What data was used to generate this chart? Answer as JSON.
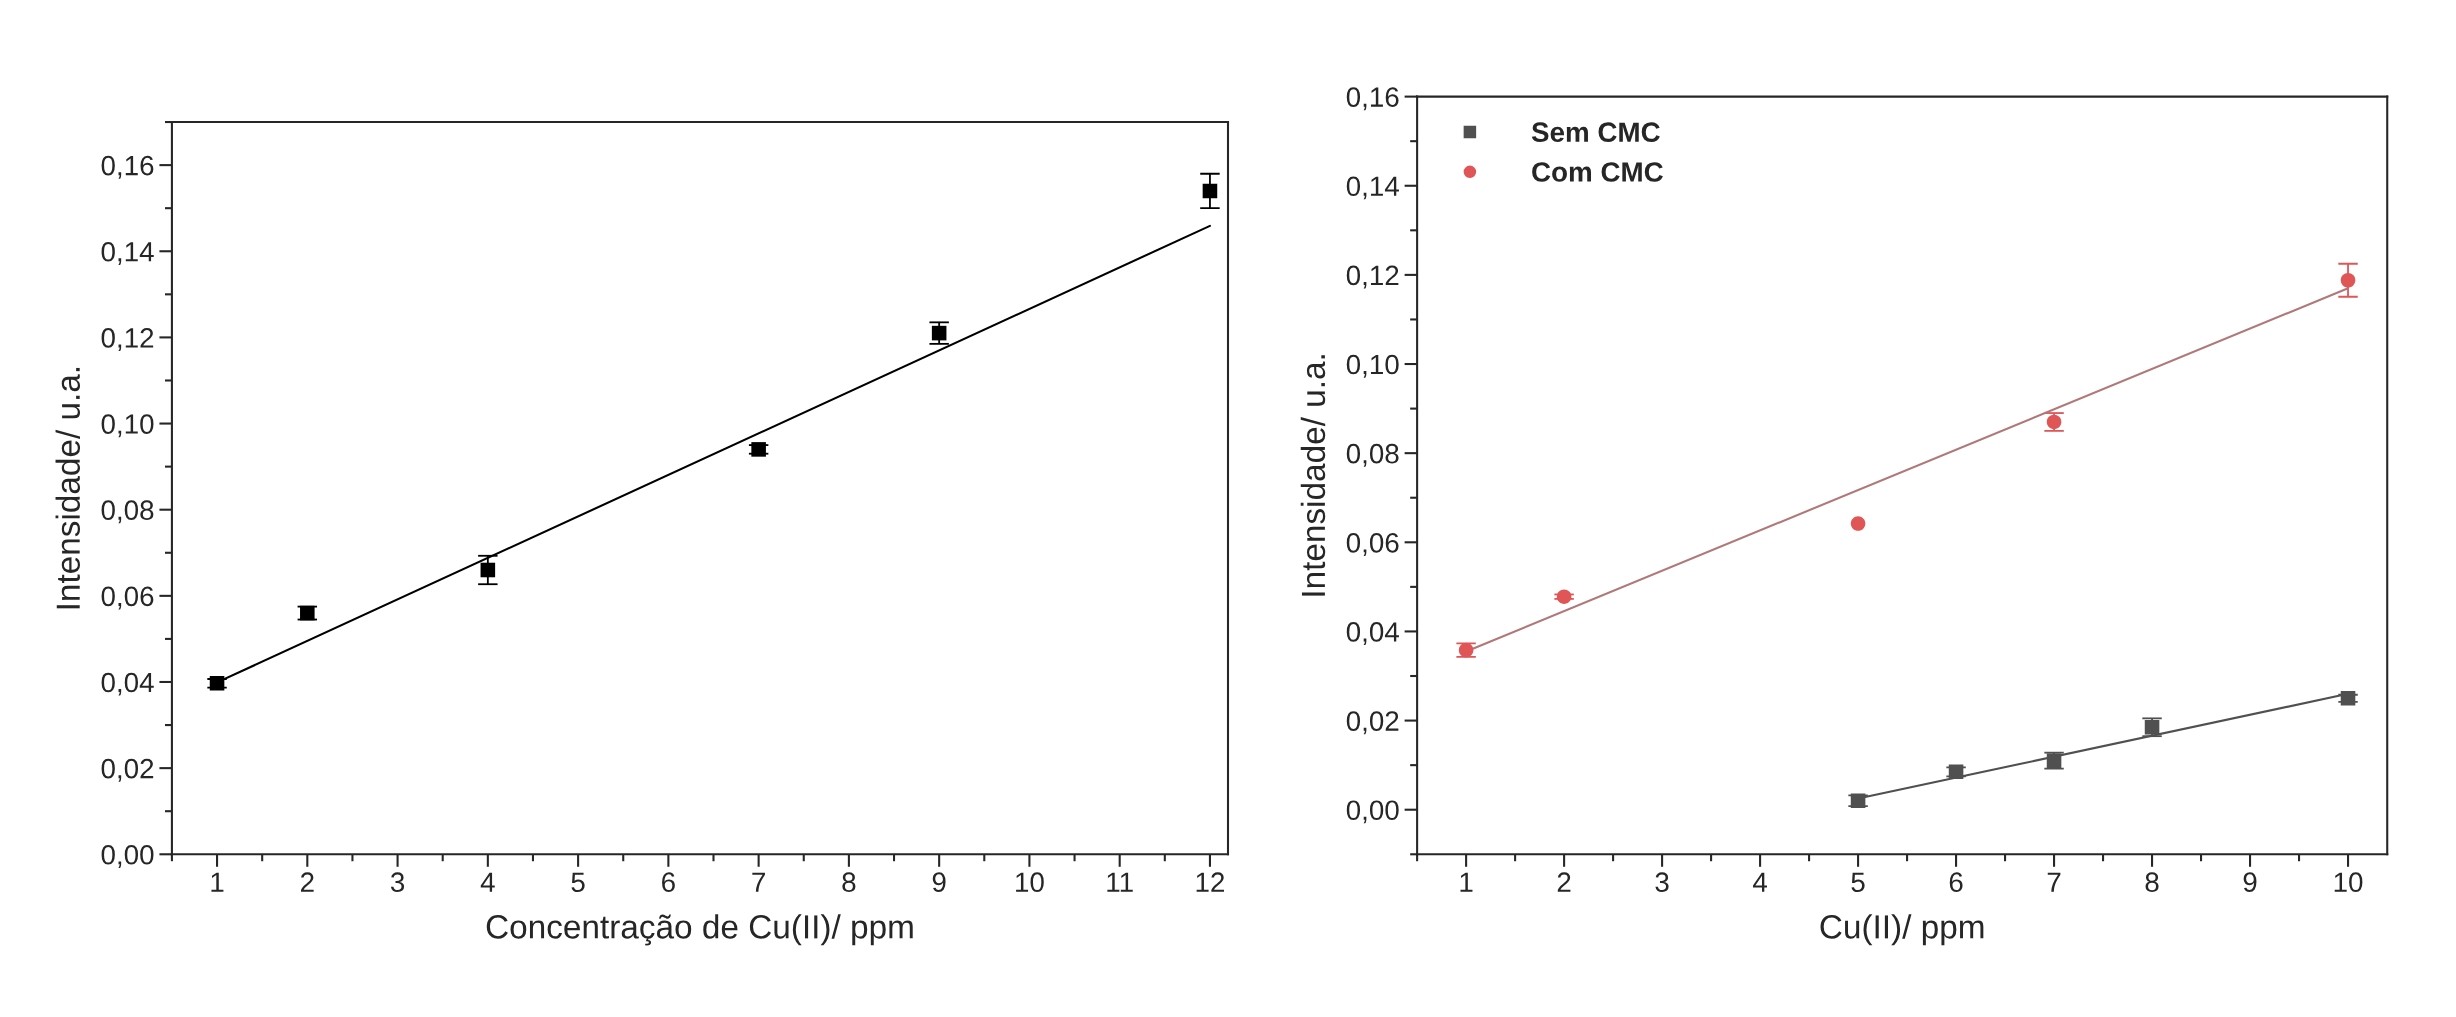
{
  "chart_data": [
    {
      "type": "scatter",
      "xlabel": "Concentração de Cu(II)/ ppm",
      "ylabel": "Intensidade/ u.a.",
      "x": [
        1,
        2,
        4,
        7,
        9,
        12
      ],
      "grid": false,
      "legend": false,
      "xlim": [
        0.5,
        12.2
      ],
      "xticks": [
        1,
        2,
        3,
        4,
        5,
        6,
        7,
        8,
        9,
        10,
        11,
        12
      ],
      "ylim": [
        0,
        0.17
      ],
      "yticks": [
        {
          "value": 0,
          "label": "0,00"
        },
        {
          "value": 0.02,
          "label": "0,02"
        },
        {
          "value": 0.04,
          "label": "0,04"
        },
        {
          "value": 0.06,
          "label": "0,06"
        },
        {
          "value": 0.08,
          "label": "0,08"
        },
        {
          "value": 0.1,
          "label": "0,10"
        },
        {
          "value": 0.12,
          "label": "0,12"
        },
        {
          "value": 0.14,
          "label": "0,14"
        },
        {
          "value": 0.16,
          "label": "0,16"
        }
      ],
      "series": [
        {
          "color": "#000000",
          "marker": "square",
          "values": [
            0.0397,
            0.056,
            0.066,
            0.094,
            0.121,
            0.154
          ],
          "errors": [
            0.001,
            0.0015,
            0.0033,
            0.001,
            0.0025,
            0.004
          ]
        },
        {
          "type": "line",
          "color": "#000000",
          "x": [
            1,
            12
          ],
          "values": [
            0.0399,
            0.1459
          ]
        }
      ]
    },
    {
      "type": "scatter",
      "xlabel": "Cu(II)/ ppm",
      "ylabel": "Intensidade/ u.a.",
      "grid": false,
      "legend": "top left",
      "xlim": [
        0.5,
        10.4
      ],
      "xticks": [
        1,
        2,
        3,
        4,
        5,
        6,
        7,
        8,
        9,
        10
      ],
      "ylim": [
        -0.01,
        0.16
      ],
      "yticks": [
        {
          "value": 0,
          "label": "0,00"
        },
        {
          "value": 0.02,
          "label": "0,02"
        },
        {
          "value": 0.04,
          "label": "0,04"
        },
        {
          "value": 0.06,
          "label": "0,06"
        },
        {
          "value": 0.08,
          "label": "0,08"
        },
        {
          "value": 0.1,
          "label": "0,10"
        },
        {
          "value": 0.12,
          "label": "0,12"
        },
        {
          "value": 0.14,
          "label": "0,14"
        },
        {
          "value": 0.16,
          "label": "0,16"
        }
      ],
      "series": [
        {
          "name": "Sem CMC",
          "color": "#505050",
          "marker": "square",
          "x": [
            5,
            6,
            7,
            8,
            10
          ],
          "values": [
            0.002,
            0.0085,
            0.011,
            0.0185,
            0.025
          ],
          "errors": [
            0.0012,
            0.001,
            0.0018,
            0.002,
            0.0008
          ]
        },
        {
          "name": "Com CMC",
          "color": "#e05555",
          "marker": "circle",
          "x": [
            1,
            2,
            5,
            7,
            10
          ],
          "values": [
            0.0358,
            0.0478,
            0.0642,
            0.087,
            0.1188
          ],
          "errors": [
            0.0015,
            0.0005,
            null,
            0.002,
            0.0037
          ]
        },
        {
          "type": "line",
          "color": "#505050",
          "x": [
            5,
            10
          ],
          "values": [
            0.0025,
            0.026
          ]
        },
        {
          "type": "line",
          "color": "#b07878",
          "x": [
            1,
            10
          ],
          "values": [
            0.0355,
            0.117
          ]
        }
      ]
    }
  ]
}
